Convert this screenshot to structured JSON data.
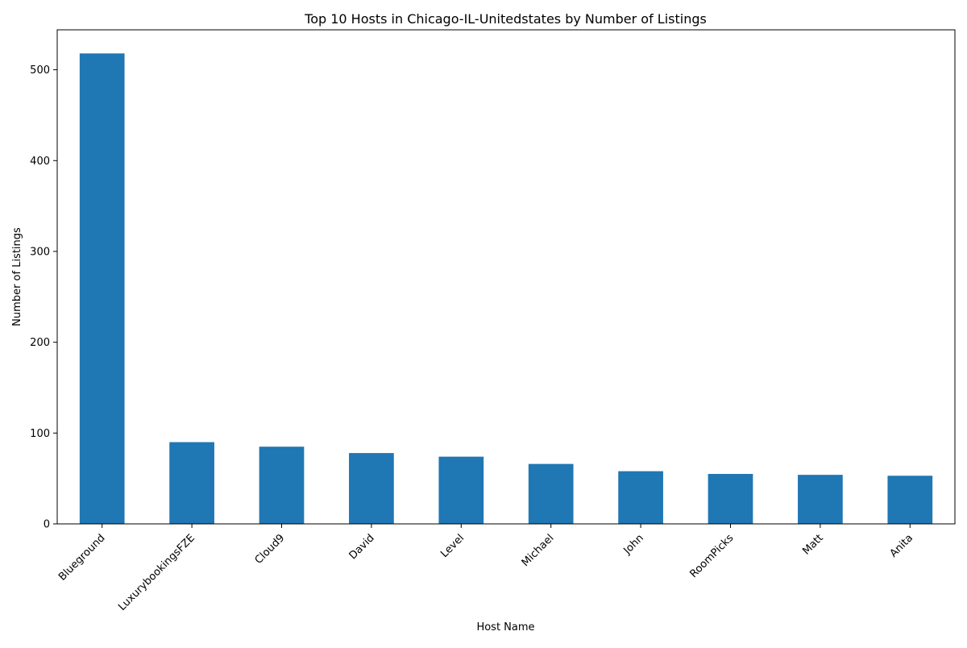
{
  "chart_data": {
    "type": "bar",
    "title": "Top 10 Hosts in Chicago-IL-Unitedstates by Number of Listings",
    "xlabel": "Host Name",
    "ylabel": "Number of Listings",
    "categories": [
      "Blueground",
      "LuxurybookingsFZE",
      "Cloud9",
      "David",
      "Level",
      "Michael",
      "John",
      "RoomPicks",
      "Matt",
      "Anita"
    ],
    "values": [
      518,
      90,
      85,
      78,
      74,
      66,
      58,
      55,
      54,
      53
    ],
    "ylim": [
      0,
      544
    ],
    "yticks": [
      0,
      100,
      200,
      300,
      400,
      500
    ],
    "grid": false,
    "legend": "none",
    "bar_color": "#1f77b4"
  }
}
